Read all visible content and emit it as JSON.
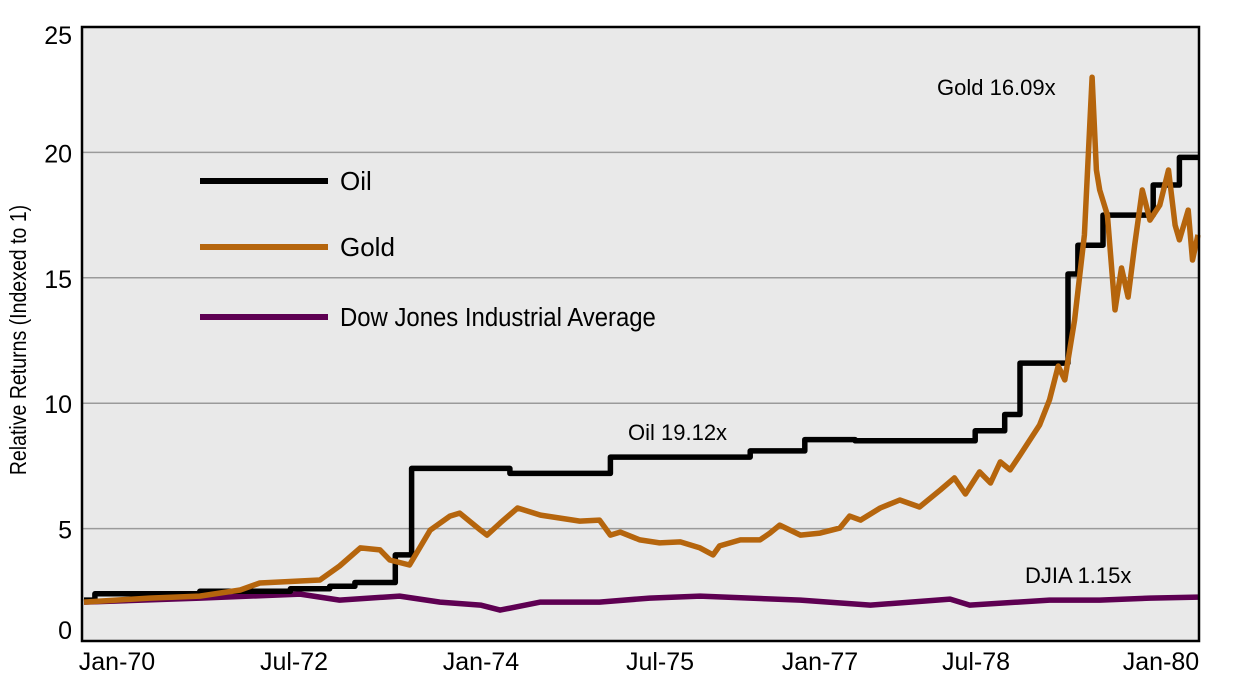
{
  "chart_data": {
    "type": "line",
    "title": "",
    "xlabel": "",
    "ylabel": "Relative Returns (Indexed to 1)",
    "ylim": [
      0,
      25
    ],
    "xlim": [
      1970.0,
      1980.2
    ],
    "yticks": [
      "0",
      "5",
      "10",
      "15",
      "20",
      "25"
    ],
    "xticks": [
      "Jan-70",
      "Jul-72",
      "Jan-74",
      "Jul-75",
      "Jan-77",
      "Jul-78",
      "Jan-80"
    ],
    "grid": true,
    "legend_position": "top-left",
    "series": [
      {
        "name": "Oil",
        "color": "#000000",
        "step": true,
        "points": [
          [
            1970.0,
            2.15
          ],
          [
            1970.1,
            2.4
          ],
          [
            1971.06,
            2.5
          ],
          [
            1971.89,
            2.6
          ],
          [
            1972.25,
            2.7
          ],
          [
            1972.48,
            2.85
          ],
          [
            1972.85,
            3.95
          ],
          [
            1973.0,
            7.4
          ],
          [
            1973.9,
            7.2
          ],
          [
            1974.82,
            7.85
          ],
          [
            1976.1,
            8.1
          ],
          [
            1976.6,
            8.55
          ],
          [
            1977.06,
            8.5
          ],
          [
            1978.16,
            8.9
          ],
          [
            1978.43,
            9.55
          ],
          [
            1978.57,
            11.6
          ],
          [
            1979.01,
            15.15
          ],
          [
            1979.1,
            16.3
          ],
          [
            1979.33,
            17.5
          ],
          [
            1979.79,
            18.7
          ],
          [
            1980.03,
            19.8
          ],
          [
            1980.2,
            19.8
          ]
        ]
      },
      {
        "name": "Gold",
        "color": "#b5650d",
        "step": false,
        "points": [
          [
            1970.0,
            2.07
          ],
          [
            1970.6,
            2.23
          ],
          [
            1971.06,
            2.31
          ],
          [
            1971.43,
            2.55
          ],
          [
            1971.61,
            2.83
          ],
          [
            1972.16,
            2.95
          ],
          [
            1972.34,
            3.51
          ],
          [
            1972.53,
            4.23
          ],
          [
            1972.71,
            4.15
          ],
          [
            1972.8,
            3.75
          ],
          [
            1972.98,
            3.55
          ],
          [
            1973.17,
            4.94
          ],
          [
            1973.35,
            5.5
          ],
          [
            1973.44,
            5.62
          ],
          [
            1973.63,
            4.94
          ],
          [
            1973.69,
            4.74
          ],
          [
            1973.81,
            5.22
          ],
          [
            1973.97,
            5.82
          ],
          [
            1974.18,
            5.54
          ],
          [
            1974.36,
            5.42
          ],
          [
            1974.54,
            5.3
          ],
          [
            1974.72,
            5.34
          ],
          [
            1974.82,
            4.74
          ],
          [
            1974.91,
            4.86
          ],
          [
            1975.09,
            4.55
          ],
          [
            1975.27,
            4.43
          ],
          [
            1975.46,
            4.47
          ],
          [
            1975.64,
            4.23
          ],
          [
            1975.76,
            3.95
          ],
          [
            1975.82,
            4.31
          ],
          [
            1976.01,
            4.55
          ],
          [
            1976.19,
            4.55
          ],
          [
            1976.28,
            4.82
          ],
          [
            1976.37,
            5.14
          ],
          [
            1976.56,
            4.74
          ],
          [
            1976.74,
            4.82
          ],
          [
            1976.92,
            5.02
          ],
          [
            1977.01,
            5.5
          ],
          [
            1977.11,
            5.34
          ],
          [
            1977.29,
            5.82
          ],
          [
            1977.47,
            6.14
          ],
          [
            1977.65,
            5.86
          ],
          [
            1977.84,
            6.54
          ],
          [
            1977.97,
            7.02
          ],
          [
            1978.07,
            6.38
          ],
          [
            1978.2,
            7.26
          ],
          [
            1978.3,
            6.82
          ],
          [
            1978.39,
            7.66
          ],
          [
            1978.48,
            7.34
          ],
          [
            1978.57,
            7.93
          ],
          [
            1978.75,
            9.13
          ],
          [
            1978.84,
            10.13
          ],
          [
            1978.92,
            11.48
          ],
          [
            1978.98,
            10.93
          ],
          [
            1979.07,
            13.32
          ],
          [
            1979.16,
            16.71
          ],
          [
            1979.23,
            23.0
          ],
          [
            1979.27,
            19.3
          ],
          [
            1979.3,
            18.5
          ],
          [
            1979.37,
            17.5
          ],
          [
            1979.44,
            13.72
          ],
          [
            1979.5,
            15.39
          ],
          [
            1979.56,
            14.23
          ],
          [
            1979.62,
            16.31
          ],
          [
            1979.69,
            18.5
          ],
          [
            1979.76,
            17.3
          ],
          [
            1979.85,
            17.9
          ],
          [
            1979.93,
            19.3
          ],
          [
            1979.99,
            17.1
          ],
          [
            1980.03,
            16.51
          ],
          [
            1980.11,
            17.7
          ],
          [
            1980.15,
            15.71
          ],
          [
            1980.2,
            16.71
          ]
        ]
      },
      {
        "name": "Dow Jones Industrial Average",
        "color": "#5e0052",
        "step": false,
        "points": [
          [
            1970.0,
            2.07
          ],
          [
            1971.06,
            2.23
          ],
          [
            1971.98,
            2.39
          ],
          [
            1972.34,
            2.15
          ],
          [
            1972.89,
            2.31
          ],
          [
            1973.26,
            2.07
          ],
          [
            1973.63,
            1.95
          ],
          [
            1973.81,
            1.75
          ],
          [
            1974.18,
            2.07
          ],
          [
            1974.72,
            2.07
          ],
          [
            1975.18,
            2.23
          ],
          [
            1975.64,
            2.31
          ],
          [
            1976.56,
            2.15
          ],
          [
            1977.2,
            1.95
          ],
          [
            1977.93,
            2.19
          ],
          [
            1978.11,
            1.95
          ],
          [
            1978.84,
            2.15
          ],
          [
            1979.3,
            2.15
          ],
          [
            1979.76,
            2.23
          ],
          [
            1980.2,
            2.27
          ]
        ]
      }
    ],
    "annotations": [
      {
        "text": "Gold 16.09x",
        "series": "Gold"
      },
      {
        "text": "Oil 19.12x",
        "series": "Oil"
      },
      {
        "text": "DJIA 1.15x",
        "series": "Dow Jones Industrial Average"
      }
    ]
  }
}
